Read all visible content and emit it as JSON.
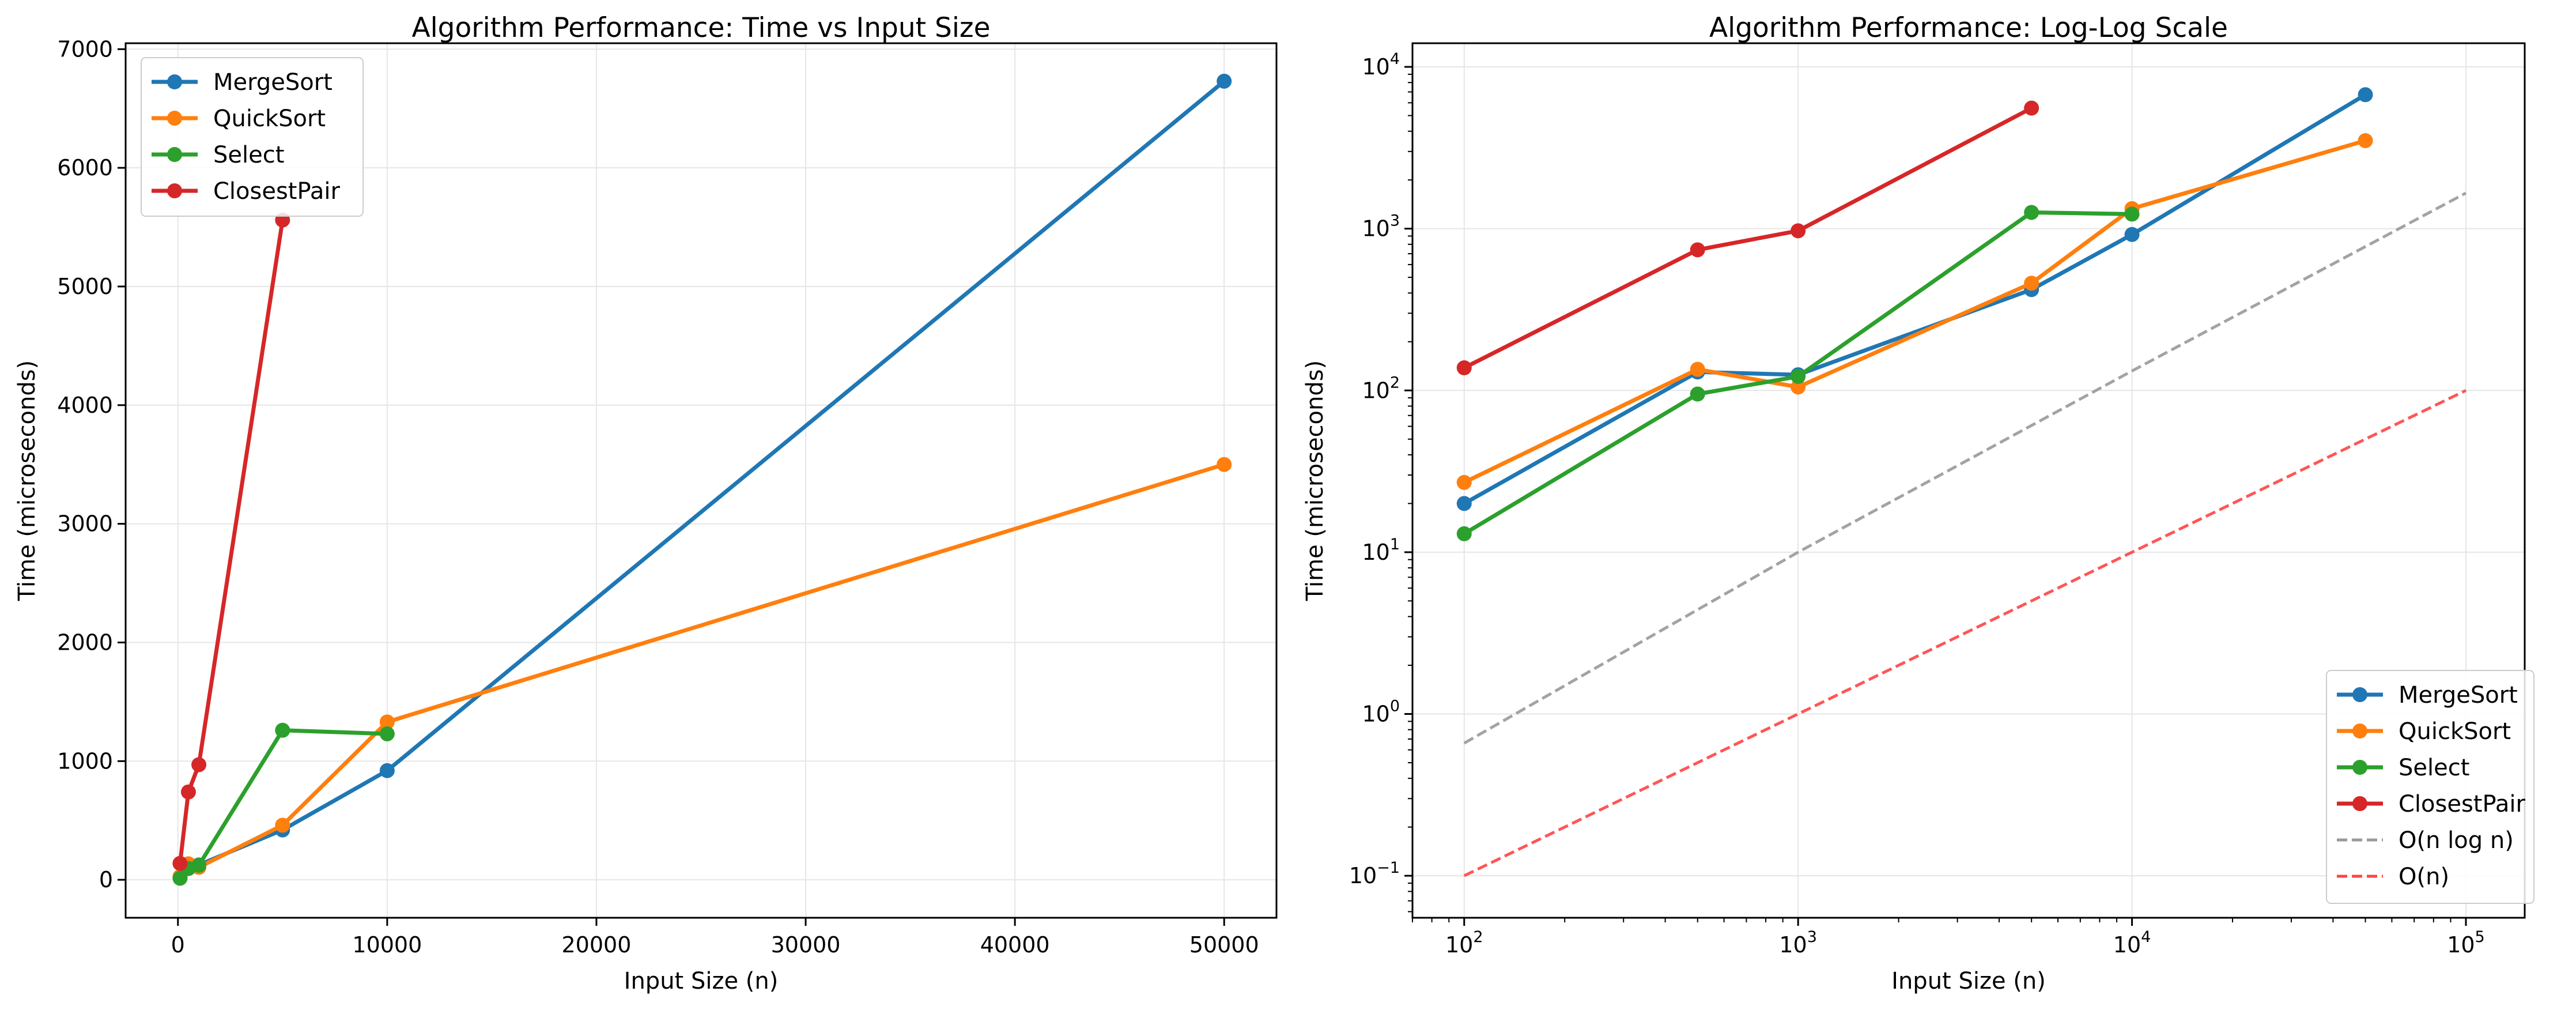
{
  "chart_data": [
    {
      "type": "line",
      "title": "Algorithm Performance: Time vs Input Size",
      "xlabel": "Input Size (n)",
      "ylabel": "Time (microseconds)",
      "xscale": "linear",
      "yscale": "linear",
      "xlim": [
        -2500,
        52500
      ],
      "ylim": [
        -320,
        7050
      ],
      "xticks": [
        0,
        10000,
        20000,
        30000,
        40000,
        50000
      ],
      "yticks": [
        0,
        1000,
        2000,
        3000,
        4000,
        5000,
        6000,
        7000
      ],
      "grid": true,
      "legend_position": "top-left",
      "series": [
        {
          "name": "MergeSort",
          "color": "#1f77b4",
          "x": [
            100,
            500,
            1000,
            5000,
            10000,
            50000
          ],
          "y": [
            20,
            130,
            125,
            420,
            920,
            6730
          ]
        },
        {
          "name": "QuickSort",
          "color": "#ff7f0e",
          "x": [
            100,
            500,
            1000,
            5000,
            10000,
            50000
          ],
          "y": [
            27,
            135,
            105,
            460,
            1330,
            3500
          ]
        },
        {
          "name": "Select",
          "color": "#2ca02c",
          "x": [
            100,
            500,
            1000,
            5000,
            10000
          ],
          "y": [
            13,
            95,
            122,
            1260,
            1230
          ]
        },
        {
          "name": "ClosestPair",
          "color": "#d62728",
          "x": [
            100,
            500,
            1000,
            5000
          ],
          "y": [
            138,
            740,
            970,
            5560
          ]
        }
      ]
    },
    {
      "type": "line",
      "title": "Algorithm Performance: Log-Log Scale",
      "xlabel": "Input Size (n)",
      "ylabel": "Time (microseconds)",
      "xscale": "log",
      "yscale": "log",
      "xlim": [
        70,
        150000
      ],
      "ylim": [
        0.055,
        14000
      ],
      "xticks": [
        {
          "value": 100,
          "base": "10",
          "exp": "2"
        },
        {
          "value": 1000,
          "base": "10",
          "exp": "3"
        },
        {
          "value": 10000,
          "base": "10",
          "exp": "4"
        },
        {
          "value": 100000,
          "base": "10",
          "exp": "5"
        }
      ],
      "yticks": [
        {
          "value": 0.1,
          "base": "10",
          "exp": "−1"
        },
        {
          "value": 1,
          "base": "10",
          "exp": "0"
        },
        {
          "value": 10,
          "base": "10",
          "exp": "1"
        },
        {
          "value": 100,
          "base": "10",
          "exp": "2"
        },
        {
          "value": 1000,
          "base": "10",
          "exp": "3"
        },
        {
          "value": 10000,
          "base": "10",
          "exp": "4"
        }
      ],
      "grid": true,
      "legend_position": "bottom-right",
      "series": [
        {
          "name": "MergeSort",
          "color": "#1f77b4",
          "x": [
            100,
            500,
            1000,
            5000,
            10000,
            50000
          ],
          "y": [
            20,
            130,
            125,
            420,
            920,
            6730
          ]
        },
        {
          "name": "QuickSort",
          "color": "#ff7f0e",
          "x": [
            100,
            500,
            1000,
            5000,
            10000,
            50000
          ],
          "y": [
            27,
            135,
            105,
            460,
            1330,
            3500
          ]
        },
        {
          "name": "Select",
          "color": "#2ca02c",
          "x": [
            100,
            500,
            1000,
            5000,
            10000
          ],
          "y": [
            13,
            95,
            122,
            1260,
            1230
          ]
        },
        {
          "name": "ClosestPair",
          "color": "#d62728",
          "x": [
            100,
            500,
            1000,
            5000
          ],
          "y": [
            138,
            740,
            970,
            5560
          ]
        },
        {
          "name": "O(n log n)",
          "color": "#999999",
          "style": "dashed",
          "x": [
            100,
            1000,
            10000,
            100000
          ],
          "y": [
            0.66,
            10,
            132,
            1660
          ]
        },
        {
          "name": "O(n)",
          "color": "#ff4444",
          "style": "dashed",
          "x": [
            100,
            100000
          ],
          "y": [
            0.1,
            100
          ]
        }
      ]
    }
  ]
}
